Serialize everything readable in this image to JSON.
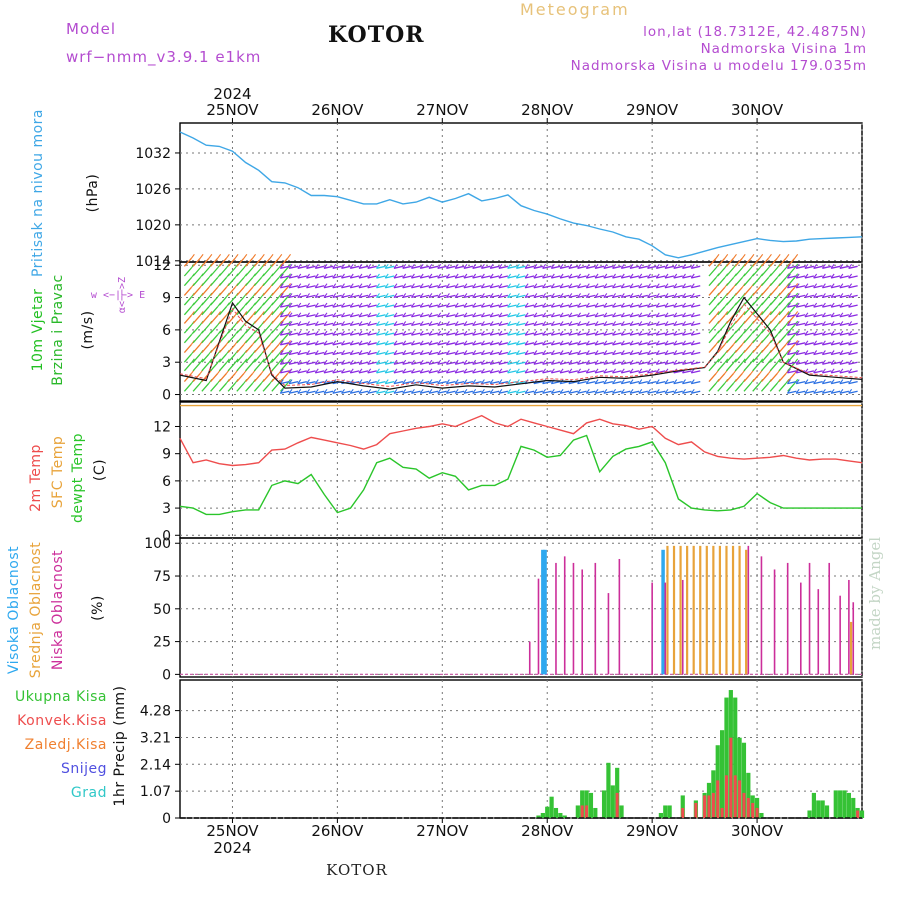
{
  "header": {
    "model_label": "Model",
    "model_name": "wrf−nmm_v3.9.1  e1km",
    "title": "KOTOR",
    "meteogram": "Meteogram",
    "lonlat": "lon,lat (18.7312E, 42.4875N)",
    "elevation": "Nadmorska Visina 1m",
    "model_elevation": "Nadmorska Visina u modelu 179.035m"
  },
  "footer": {
    "station": "KOTOR",
    "credit": "made by Angel"
  },
  "colors": {
    "pressure": "#3fa7e6",
    "wind_label": "#22c022",
    "wind_brzina": "#2ab82a",
    "temp2m": "#ee4d4d",
    "sfc_temp": "#e8a33a",
    "dewpoint": "#2ac52a",
    "cloud_high": "#2ea8ef",
    "cloud_mid": "#e8a33a",
    "cloud_low": "#cc2e9a",
    "precip_total": "#35c235",
    "precip_conv": "#ee4d4d",
    "precip_freezing": "#f08030",
    "precip_snow": "#5050e0",
    "precip_graupel": "#30c8c8",
    "wind_purple": "#8a2be2",
    "wind_blue": "#2b6fe2",
    "wind_cyan": "#25c6e6",
    "wind_green": "#3ccc3c",
    "wind_orange": "#f07a2a",
    "model_label": "#b44cd0",
    "meteogram": "#e7c27a",
    "credit": "#c4d6c6"
  },
  "chart_data": [
    {
      "id": "time_axis",
      "type": "axis",
      "year": "2024",
      "day_labels": [
        "25NOV",
        "26NOV",
        "27NOV",
        "28NOV",
        "29NOV",
        "30NOV"
      ],
      "start_hour": -12,
      "end_hour": 144
    },
    {
      "id": "pressure",
      "type": "line",
      "ylabel": "Pritisak na nivou mora",
      "unit": "(hPa)",
      "ylim": [
        1013.8,
        1037
      ],
      "yticks": [
        1014,
        1020,
        1026,
        1032
      ],
      "x": [
        -12,
        -9,
        -6,
        -3,
        0,
        3,
        6,
        9,
        12,
        15,
        18,
        21,
        24,
        27,
        30,
        33,
        36,
        39,
        42,
        45,
        48,
        51,
        54,
        57,
        60,
        63,
        66,
        69,
        72,
        75,
        78,
        81,
        84,
        87,
        90,
        93,
        96,
        99,
        102,
        105,
        108,
        111,
        114,
        117,
        120,
        123,
        126,
        129,
        132,
        135,
        138,
        141,
        144
      ],
      "values": [
        1035.5,
        1034.5,
        1033.3,
        1033.1,
        1032.3,
        1030.4,
        1029.1,
        1027.2,
        1027.0,
        1026.2,
        1024.9,
        1024.9,
        1024.7,
        1024.1,
        1023.5,
        1023.5,
        1024.2,
        1023.5,
        1023.8,
        1024.6,
        1023.8,
        1024.4,
        1025.2,
        1024.0,
        1024.4,
        1025.0,
        1023.2,
        1022.4,
        1021.8,
        1021.0,
        1020.3,
        1019.9,
        1019.3,
        1018.8,
        1018.0,
        1017.6,
        1016.5,
        1015.0,
        1014.5,
        1015.0,
        1015.6,
        1016.2,
        1016.7,
        1017.2,
        1017.7,
        1017.4,
        1017.2,
        1017.3,
        1017.6,
        1017.7,
        1017.8,
        1017.9,
        1018.0
      ],
      "grid": true
    },
    {
      "id": "wind",
      "type": "wind_barbs",
      "ylabel": "10m Vjetar",
      "ylabel2": "Brzina i Pravac",
      "unit": "(m/s)",
      "ylim": [
        -0.6,
        12.3
      ],
      "yticks": [
        0,
        3,
        6,
        9,
        12
      ],
      "compass": "w  <−|−>  E",
      "compass_vert": "α<−−>Z",
      "speed_x": [
        -12,
        -6,
        0,
        3,
        6,
        9,
        12,
        18,
        24,
        30,
        36,
        42,
        48,
        54,
        60,
        66,
        72,
        78,
        84,
        90,
        96,
        102,
        108,
        111,
        114,
        117,
        120,
        123,
        126,
        132,
        138,
        144
      ],
      "speed_values": [
        1.8,
        1.3,
        8.5,
        6.8,
        6.0,
        1.8,
        0.6,
        0.7,
        1.2,
        0.8,
        0.5,
        0.9,
        0.6,
        0.8,
        0.7,
        1.0,
        1.3,
        1.2,
        1.6,
        1.5,
        1.8,
        2.2,
        2.5,
        4.0,
        6.8,
        9.0,
        7.5,
        6.0,
        3.0,
        1.8,
        1.6,
        1.4
      ]
    },
    {
      "id": "temperature",
      "type": "line",
      "ylabel": "2m Temp",
      "ylabel2": "SFC Temp",
      "ylabel3": "dewpt Temp",
      "unit": "(C)",
      "ylim": [
        -0.3,
        14.7
      ],
      "yticks": [
        0,
        3,
        6,
        9,
        12
      ],
      "x": [
        -12,
        -9,
        -6,
        -3,
        0,
        3,
        6,
        9,
        12,
        15,
        18,
        21,
        24,
        27,
        30,
        33,
        36,
        39,
        42,
        45,
        48,
        51,
        54,
        57,
        60,
        63,
        66,
        69,
        72,
        75,
        78,
        81,
        84,
        87,
        90,
        93,
        96,
        99,
        102,
        105,
        108,
        111,
        114,
        117,
        120,
        123,
        126,
        129,
        132,
        135,
        138,
        141,
        144
      ],
      "series": [
        {
          "name": "2m Temp",
          "values": [
            10.7,
            8.0,
            8.3,
            7.9,
            7.7,
            7.8,
            8.0,
            9.4,
            9.5,
            10.2,
            10.8,
            10.5,
            10.2,
            9.9,
            9.5,
            10.0,
            11.2,
            11.5,
            11.8,
            12.0,
            12.3,
            12.0,
            12.6,
            13.2,
            12.4,
            12.0,
            12.8,
            12.4,
            12.0,
            11.6,
            11.2,
            12.4,
            12.8,
            12.3,
            12.1,
            11.7,
            12.0,
            10.7,
            10.0,
            10.3,
            9.2,
            8.7,
            8.5,
            8.4,
            8.5,
            8.6,
            8.8,
            8.5,
            8.3,
            8.4,
            8.4,
            8.2,
            8.0
          ]
        },
        {
          "name": "SFC Temp",
          "values": [
            14.3,
            14.3,
            14.3,
            14.3,
            14.3,
            14.3,
            14.3,
            14.3,
            14.3,
            14.3,
            14.3,
            14.3,
            14.3,
            14.3,
            14.3,
            14.3,
            14.3,
            14.3,
            14.3,
            14.3,
            14.3,
            14.3,
            14.3,
            14.3,
            14.3,
            14.3,
            14.3,
            14.3,
            14.3,
            14.3,
            14.3,
            14.3,
            14.3,
            14.3,
            14.3,
            14.3,
            14.3,
            14.3,
            14.3,
            14.3,
            14.3,
            14.3,
            14.3,
            14.3,
            14.3,
            14.3,
            14.3,
            14.3,
            14.3,
            14.3,
            14.3,
            14.3,
            14.3
          ]
        },
        {
          "name": "dewpt Temp",
          "values": [
            3.2,
            3.0,
            2.3,
            2.3,
            2.6,
            2.8,
            2.8,
            5.5,
            6.0,
            5.7,
            6.7,
            4.5,
            2.5,
            3.0,
            5.0,
            8.0,
            8.5,
            7.5,
            7.3,
            6.3,
            6.9,
            6.5,
            5.0,
            5.5,
            5.5,
            6.2,
            9.8,
            9.4,
            8.6,
            8.8,
            10.5,
            11.0,
            7.0,
            8.7,
            9.5,
            9.8,
            10.3,
            8.0,
            4.0,
            3.0,
            2.8,
            2.7,
            2.8,
            3.2,
            4.6,
            3.6,
            3.0,
            3.0,
            3.0,
            3.0,
            3.0,
            3.0,
            3.0
          ]
        }
      ],
      "grid": true
    },
    {
      "id": "clouds",
      "type": "bar",
      "ylabel": "Visoka Oblacnost",
      "ylabel2": "Srednja Oblacnost",
      "ylabel3": "Niska  Oblacnost",
      "unit": "(%)",
      "ylim": [
        -2,
        104
      ],
      "yticks": [
        0,
        25,
        50,
        75,
        100
      ],
      "series": [
        {
          "name": "Visoka Oblacnost",
          "x": [
            71,
            71.5,
            98.5
          ],
          "values": [
            95,
            95,
            95
          ]
        },
        {
          "name": "Srednja Oblacnost",
          "x": [
            99.5,
            101,
            102.5,
            104,
            105.5,
            107,
            108.5,
            110,
            111.5,
            113,
            114.5,
            116,
            117.5,
            141.5
          ],
          "values": [
            98,
            98,
            98,
            98,
            98,
            98,
            98,
            98,
            98,
            98,
            98,
            98,
            95,
            40
          ]
        },
        {
          "name": "Niska  Oblacnost",
          "x": [
            68,
            70,
            74,
            76,
            78,
            80,
            83,
            86,
            88.5,
            96,
            99,
            103,
            118,
            121,
            124,
            127,
            130,
            132,
            134,
            136.5,
            139,
            141,
            142
          ],
          "values": [
            25,
            73,
            85,
            90,
            85,
            80,
            85,
            62,
            88,
            70,
            70,
            72,
            98,
            90,
            80,
            85,
            70,
            85,
            65,
            85,
            60,
            72,
            55
          ]
        }
      ],
      "grid": true
    },
    {
      "id": "precip",
      "type": "bar",
      "ylabel": "1hr Precip (mm)",
      "legend": [
        "Ukupna  Kisa",
        "Konvek.Kisa",
        "Zaledj.Kisa",
        "Snijeg",
        "Grad"
      ],
      "ylim": [
        0,
        5.5
      ],
      "yticks": [
        0,
        1.07,
        2.14,
        3.21,
        4.28
      ],
      "series": [
        {
          "name": "Ukupna  Kisa",
          "x": [
            70,
            71,
            72,
            73,
            74,
            75,
            76,
            79,
            80,
            81,
            82,
            83,
            85,
            86,
            87,
            88,
            89,
            98,
            99,
            100,
            103,
            106,
            108,
            109,
            110,
            111,
            112,
            113,
            114,
            115,
            116,
            117,
            118,
            119,
            120,
            121,
            132,
            133,
            134,
            135,
            136,
            138,
            139,
            140,
            141,
            142,
            143,
            144
          ],
          "values": [
            0.1,
            0.2,
            0.45,
            0.85,
            0.4,
            0.2,
            0.1,
            0.5,
            1.1,
            1.1,
            1.0,
            0.4,
            1.1,
            2.2,
            1.3,
            2.0,
            0.5,
            0.2,
            0.5,
            0.5,
            0.9,
            0.7,
            1.0,
            1.4,
            1.9,
            2.9,
            3.5,
            4.8,
            5.1,
            4.8,
            3.2,
            3.0,
            1.8,
            0.9,
            0.8,
            0.2,
            0.3,
            1.0,
            0.7,
            0.7,
            0.5,
            1.1,
            1.1,
            1.1,
            1.0,
            0.8,
            0.4,
            0.3
          ]
        },
        {
          "name": "Konvek.Kisa",
          "x": [
            80,
            81,
            88,
            103,
            106,
            108,
            109,
            110,
            111,
            112,
            113,
            114,
            115,
            116,
            117,
            118,
            119,
            120,
            143
          ],
          "values": [
            0.5,
            0.5,
            1.0,
            0.4,
            0.6,
            0.9,
            0.9,
            1.0,
            1.5,
            0.4,
            1.7,
            3.2,
            1.7,
            1.5,
            1.0,
            0.8,
            0.6,
            0.4,
            0.3
          ]
        },
        {
          "name": "Zaledj.Kisa",
          "x": [],
          "values": []
        },
        {
          "name": "Snijeg",
          "x": [],
          "values": []
        },
        {
          "name": "Grad",
          "x": [],
          "values": []
        }
      ],
      "grid": true
    }
  ]
}
